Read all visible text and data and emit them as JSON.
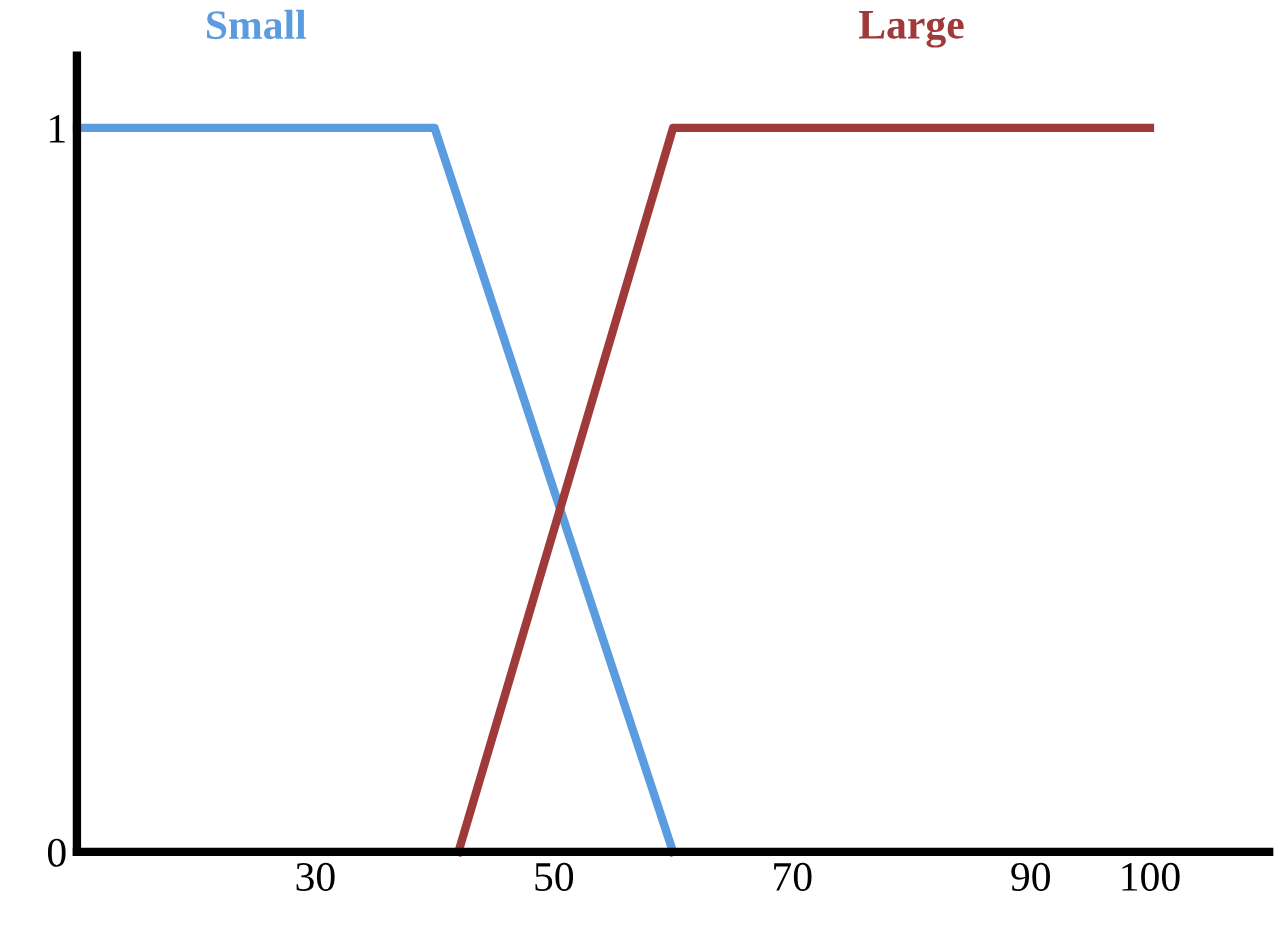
{
  "chart_data": {
    "type": "line",
    "xlim": [
      10,
      110
    ],
    "xticks": [
      30,
      50,
      70,
      90,
      100
    ],
    "ylim": [
      0,
      1.1
    ],
    "yticks": [
      0,
      1
    ],
    "grid": false,
    "legend": false,
    "marker": "none",
    "line_style": "solid",
    "series": [
      {
        "name": "Small",
        "color": "#5b9be0",
        "x": [
          10,
          40,
          60
        ],
        "values": [
          1,
          1,
          0
        ]
      },
      {
        "name": "Large",
        "color": "#a0393a",
        "x": [
          42,
          60,
          100
        ],
        "values": [
          0,
          1,
          1
        ]
      }
    ]
  }
}
